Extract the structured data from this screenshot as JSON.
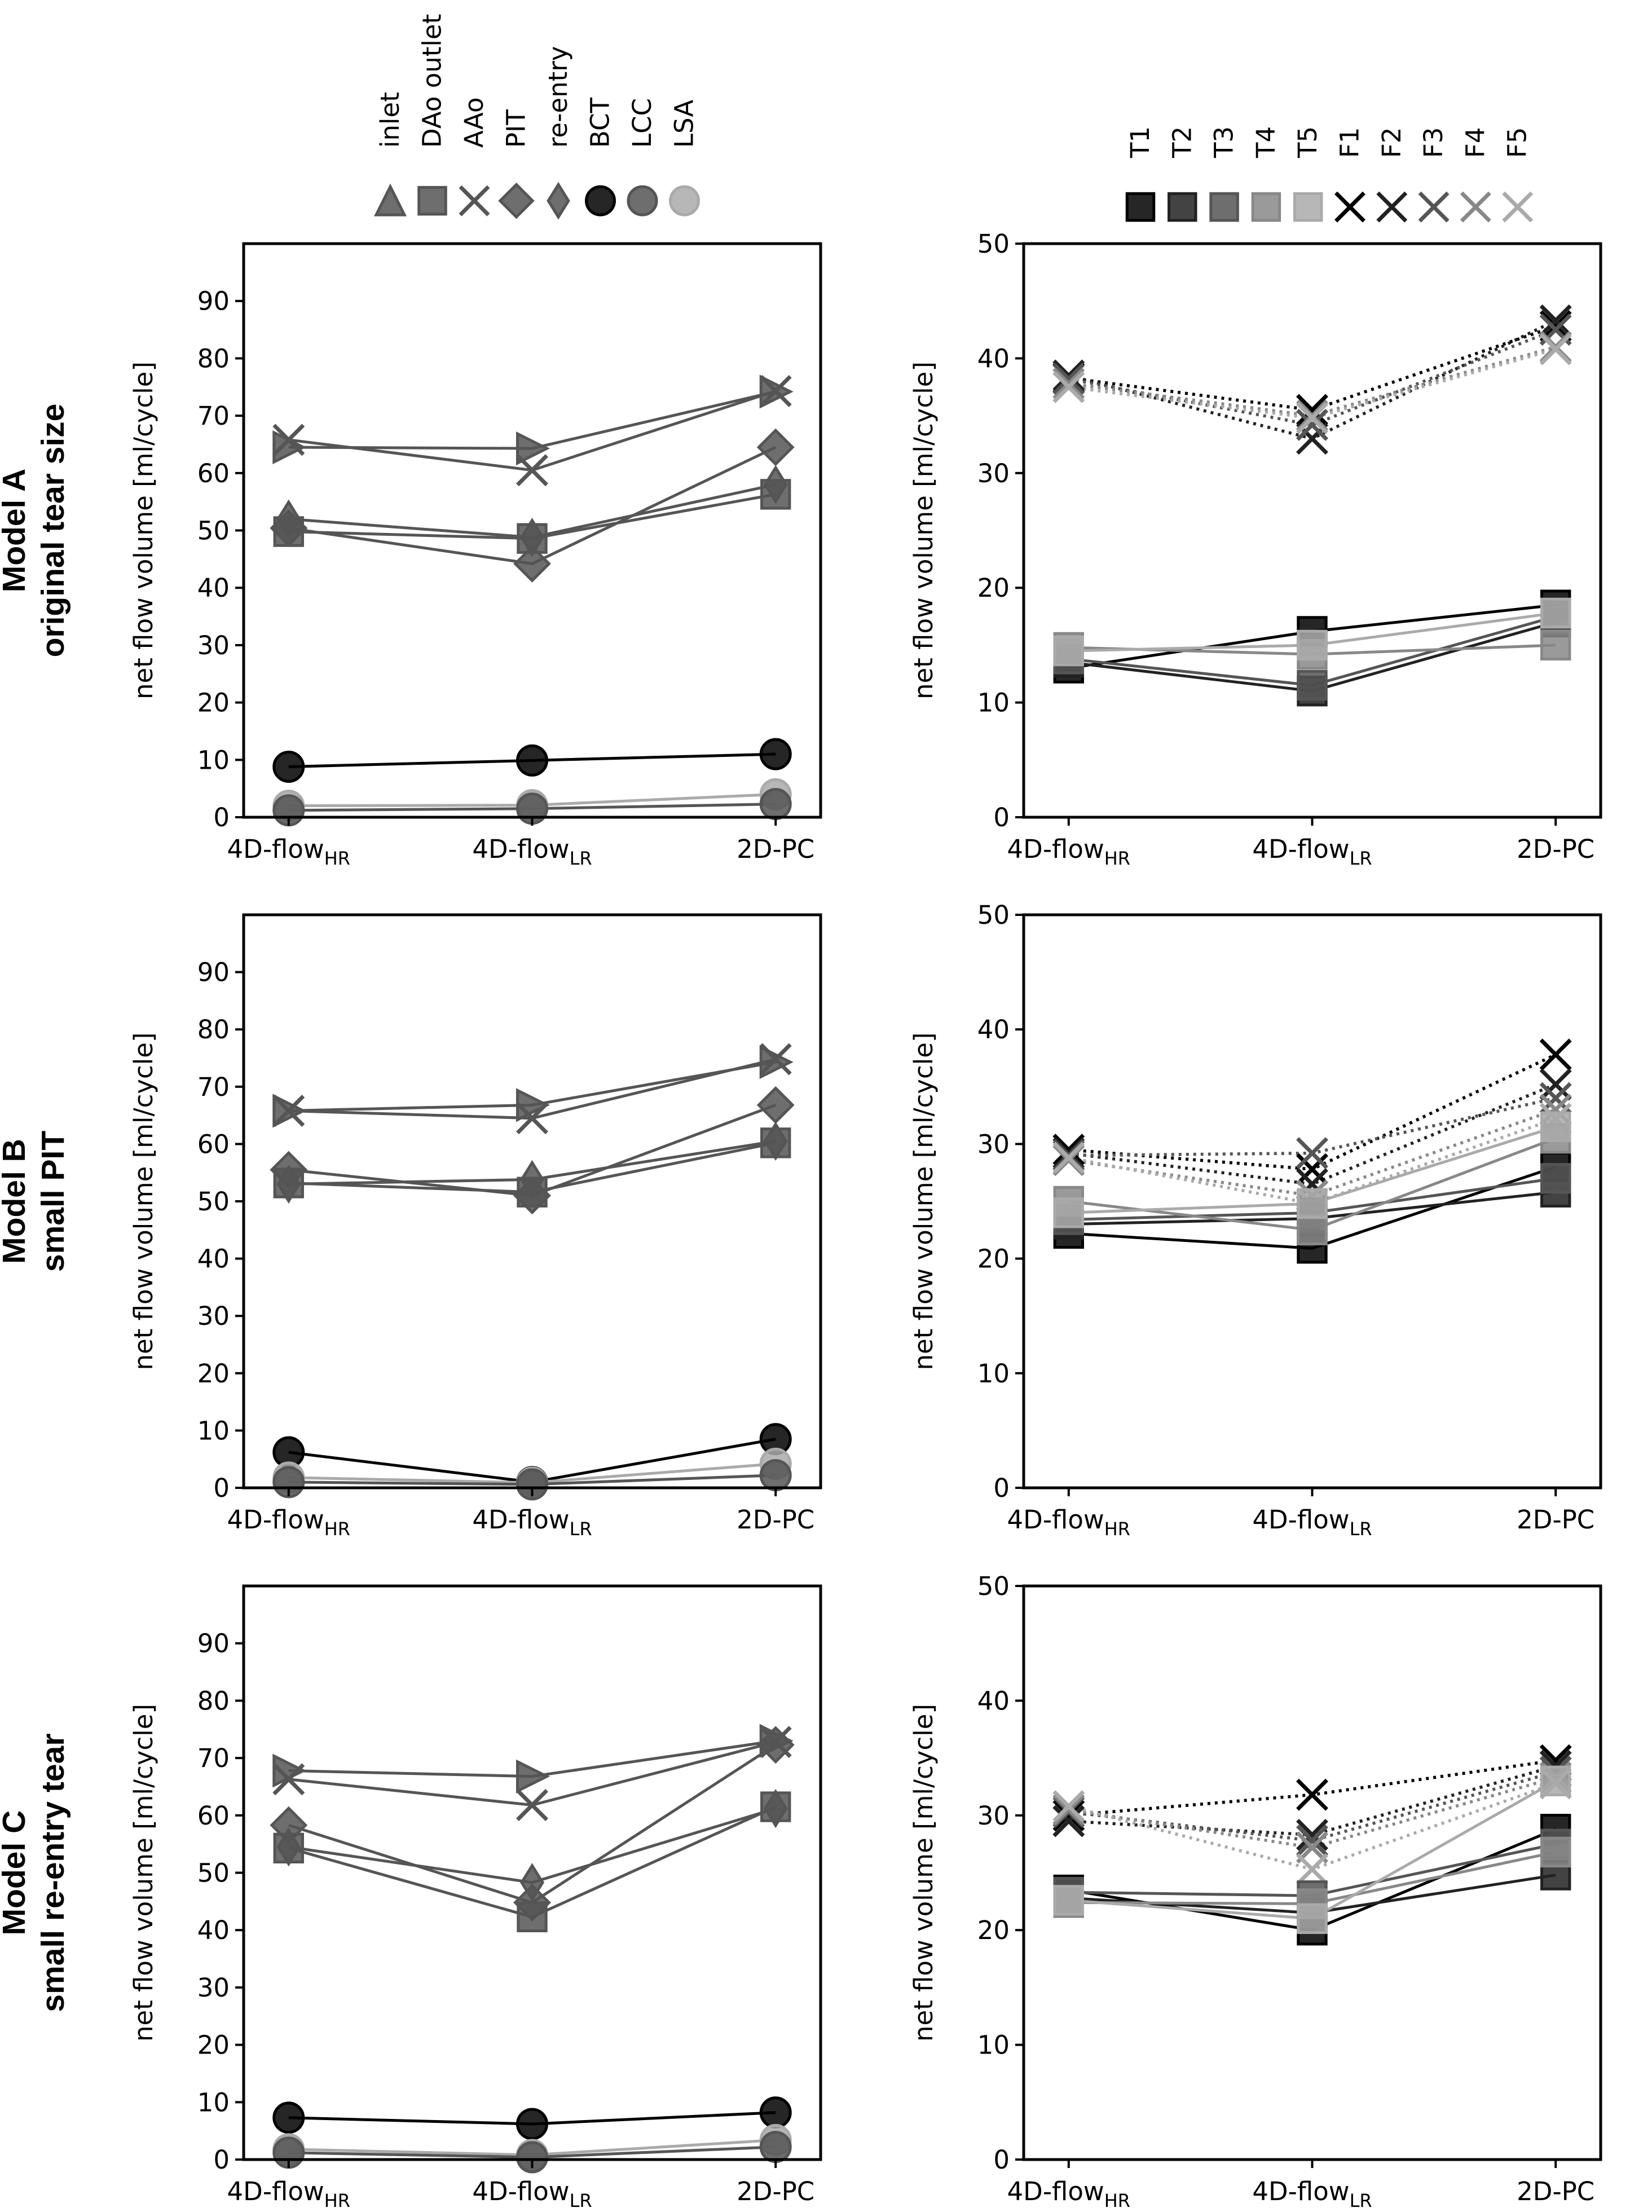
{
  "figure": {
    "row_labels": [
      [
        "Model A",
        "original tear size"
      ],
      [
        "Model B",
        "small PIT"
      ],
      [
        "Model C",
        "small re-entry tear"
      ]
    ],
    "legend_left": [
      {
        "name": "inlet",
        "marker": "triangle-right",
        "color": "#555555"
      },
      {
        "name": "DAo outlet",
        "marker": "square",
        "color": "#555555"
      },
      {
        "name": "AAo",
        "marker": "x",
        "color": "#555555"
      },
      {
        "name": "PIT",
        "marker": "diamond",
        "color": "#555555"
      },
      {
        "name": "re-entry",
        "marker": "thin-diamond",
        "color": "#555555"
      },
      {
        "name": "BCT",
        "marker": "circle",
        "color": "#000000"
      },
      {
        "name": "LCC",
        "marker": "circle",
        "color": "#555555"
      },
      {
        "name": "LSA",
        "marker": "circle",
        "color": "#aaaaaa"
      }
    ],
    "legend_right": [
      {
        "name": "T1",
        "marker": "square",
        "color": "#000000"
      },
      {
        "name": "T2",
        "marker": "square",
        "color": "#222222"
      },
      {
        "name": "T3",
        "marker": "square",
        "color": "#555555"
      },
      {
        "name": "T4",
        "marker": "square",
        "color": "#888888"
      },
      {
        "name": "T5",
        "marker": "square",
        "color": "#aaaaaa"
      },
      {
        "name": "F1",
        "marker": "x",
        "color": "#000000"
      },
      {
        "name": "F2",
        "marker": "x",
        "color": "#222222"
      },
      {
        "name": "F3",
        "marker": "x",
        "color": "#555555"
      },
      {
        "name": "F4",
        "marker": "x",
        "color": "#888888"
      },
      {
        "name": "F5",
        "marker": "x",
        "color": "#aaaaaa"
      }
    ]
  },
  "chart_data": [
    {
      "id": "A-left",
      "type": "line",
      "row": 0,
      "col": 0,
      "ylabel": "net flow volume [ml/cycle]",
      "categories": [
        [
          "4D-flow",
          "HR"
        ],
        [
          "4D-flow",
          "LR"
        ],
        [
          "2D-PC",
          ""
        ]
      ],
      "ylim": [
        0,
        100
      ],
      "yticks": [
        0,
        10,
        20,
        30,
        40,
        50,
        60,
        70,
        80,
        90
      ],
      "series": [
        {
          "name": "inlet",
          "values": [
            64.5,
            64.3,
            74.2
          ],
          "marker": "triangle-right",
          "color": "#555555",
          "line": "solid"
        },
        {
          "name": "AAo",
          "values": [
            65.8,
            60.5,
            74.3
          ],
          "marker": "x",
          "color": "#555555",
          "line": "solid"
        },
        {
          "name": "PIT",
          "values": [
            50.4,
            44.2,
            64.5
          ],
          "marker": "diamond",
          "color": "#555555",
          "line": "solid"
        },
        {
          "name": "re-entry",
          "values": [
            52.0,
            48.8,
            58.0
          ],
          "marker": "thin-diamond",
          "color": "#555555",
          "line": "solid"
        },
        {
          "name": "DAo outlet",
          "values": [
            49.8,
            48.6,
            56.3
          ],
          "marker": "square",
          "color": "#555555",
          "line": "solid"
        },
        {
          "name": "BCT",
          "values": [
            8.8,
            9.9,
            11.0
          ],
          "marker": "circle",
          "color": "#000000",
          "line": "solid"
        },
        {
          "name": "LSA",
          "values": [
            2.0,
            2.1,
            4.0
          ],
          "marker": "circle",
          "color": "#aaaaaa",
          "line": "solid"
        },
        {
          "name": "LCC",
          "values": [
            1.2,
            1.5,
            2.3
          ],
          "marker": "circle",
          "color": "#555555",
          "line": "solid"
        }
      ]
    },
    {
      "id": "A-right",
      "type": "line",
      "row": 0,
      "col": 1,
      "ylabel": "net flow volume [ml/cycle]",
      "categories": [
        [
          "4D-flow",
          "HR"
        ],
        [
          "4D-flow",
          "LR"
        ],
        [
          "2D-PC",
          ""
        ]
      ],
      "ylim": [
        0,
        50
      ],
      "yticks": [
        0,
        10,
        20,
        30,
        40,
        50
      ],
      "series": [
        {
          "name": "F1",
          "values": [
            38.3,
            35.5,
            42.8
          ],
          "marker": "x",
          "color": "#000000",
          "line": "dotted"
        },
        {
          "name": "F2",
          "values": [
            38.5,
            33.0,
            43.3
          ],
          "marker": "x",
          "color": "#222222",
          "line": "dotted"
        },
        {
          "name": "F3",
          "values": [
            38.2,
            34.2,
            42.5
          ],
          "marker": "x",
          "color": "#555555",
          "line": "dotted"
        },
        {
          "name": "F4",
          "values": [
            37.8,
            35.0,
            41.0
          ],
          "marker": "x",
          "color": "#888888",
          "line": "dotted"
        },
        {
          "name": "F5",
          "values": [
            37.5,
            34.8,
            40.8
          ],
          "marker": "x",
          "color": "#aaaaaa",
          "line": "dotted"
        },
        {
          "name": "T1",
          "values": [
            13.0,
            16.2,
            18.5
          ],
          "marker": "square",
          "color": "#000000",
          "line": "solid"
        },
        {
          "name": "T2",
          "values": [
            13.5,
            11.0,
            17.0
          ],
          "marker": "square",
          "color": "#222222",
          "line": "solid"
        },
        {
          "name": "T3",
          "values": [
            13.8,
            11.5,
            17.5
          ],
          "marker": "square",
          "color": "#555555",
          "line": "solid"
        },
        {
          "name": "T4",
          "values": [
            14.8,
            14.2,
            15.0
          ],
          "marker": "square",
          "color": "#888888",
          "line": "solid"
        },
        {
          "name": "T5",
          "values": [
            14.5,
            15.0,
            17.8
          ],
          "marker": "square",
          "color": "#aaaaaa",
          "line": "solid"
        }
      ]
    },
    {
      "id": "B-left",
      "type": "line",
      "row": 1,
      "col": 0,
      "ylabel": "net flow volume [ml/cycle]",
      "categories": [
        [
          "4D-flow",
          "HR"
        ],
        [
          "4D-flow",
          "LR"
        ],
        [
          "2D-PC",
          ""
        ]
      ],
      "ylim": [
        0,
        100
      ],
      "yticks": [
        0,
        10,
        20,
        30,
        40,
        50,
        60,
        70,
        80,
        90
      ],
      "series": [
        {
          "name": "inlet",
          "values": [
            65.8,
            66.8,
            74.3
          ],
          "marker": "triangle-right",
          "color": "#555555",
          "line": "solid"
        },
        {
          "name": "AAo",
          "values": [
            65.8,
            64.5,
            74.8
          ],
          "marker": "x",
          "color": "#555555",
          "line": "solid"
        },
        {
          "name": "PIT",
          "values": [
            55.5,
            51.0,
            66.8
          ],
          "marker": "diamond",
          "color": "#555555",
          "line": "solid"
        },
        {
          "name": "re-entry",
          "values": [
            53.0,
            53.8,
            60.5
          ],
          "marker": "thin-diamond",
          "color": "#555555",
          "line": "solid"
        },
        {
          "name": "DAo outlet",
          "values": [
            53.2,
            51.6,
            60.2
          ],
          "marker": "square",
          "color": "#555555",
          "line": "solid"
        },
        {
          "name": "BCT",
          "values": [
            6.2,
            1.0,
            8.5
          ],
          "marker": "circle",
          "color": "#000000",
          "line": "solid"
        },
        {
          "name": "LSA",
          "values": [
            1.8,
            0.9,
            4.2
          ],
          "marker": "circle",
          "color": "#aaaaaa",
          "line": "solid"
        },
        {
          "name": "LCC",
          "values": [
            1.0,
            0.6,
            2.2
          ],
          "marker": "circle",
          "color": "#555555",
          "line": "solid"
        }
      ]
    },
    {
      "id": "B-right",
      "type": "line",
      "row": 1,
      "col": 1,
      "ylabel": "net flow volume [ml/cycle]",
      "categories": [
        [
          "4D-flow",
          "HR"
        ],
        [
          "4D-flow",
          "LR"
        ],
        [
          "2D-PC",
          ""
        ]
      ],
      "ylim": [
        0,
        50
      ],
      "yticks": [
        0,
        10,
        20,
        30,
        40,
        50
      ],
      "series": [
        {
          "name": "F1",
          "values": [
            29.5,
            27.8,
            37.8
          ],
          "marker": "x",
          "color": "#000000",
          "line": "dotted"
        },
        {
          "name": "F2",
          "values": [
            29.2,
            26.5,
            35.2
          ],
          "marker": "x",
          "color": "#222222",
          "line": "dotted"
        },
        {
          "name": "F3",
          "values": [
            29.0,
            29.2,
            34.0
          ],
          "marker": "x",
          "color": "#555555",
          "line": "dotted"
        },
        {
          "name": "F4",
          "values": [
            28.6,
            25.5,
            33.0
          ],
          "marker": "x",
          "color": "#888888",
          "line": "dotted"
        },
        {
          "name": "F5",
          "values": [
            28.8,
            24.8,
            32.2
          ],
          "marker": "x",
          "color": "#aaaaaa",
          "line": "dotted"
        },
        {
          "name": "T1",
          "values": [
            22.2,
            20.9,
            28.0
          ],
          "marker": "square",
          "color": "#000000",
          "line": "solid"
        },
        {
          "name": "T2",
          "values": [
            23.0,
            23.5,
            25.8
          ],
          "marker": "square",
          "color": "#222222",
          "line": "solid"
        },
        {
          "name": "T3",
          "values": [
            23.4,
            24.0,
            27.0
          ],
          "marker": "square",
          "color": "#555555",
          "line": "solid"
        },
        {
          "name": "T4",
          "values": [
            25.0,
            22.5,
            30.5
          ],
          "marker": "square",
          "color": "#888888",
          "line": "solid"
        },
        {
          "name": "T5",
          "values": [
            24.0,
            24.8,
            31.5
          ],
          "marker": "square",
          "color": "#aaaaaa",
          "line": "solid"
        }
      ]
    },
    {
      "id": "C-left",
      "type": "line",
      "row": 2,
      "col": 0,
      "ylabel": "net flow volume [ml/cycle]",
      "categories": [
        [
          "4D-flow",
          "HR"
        ],
        [
          "4D-flow",
          "LR"
        ],
        [
          "2D-PC",
          ""
        ]
      ],
      "ylim": [
        0,
        100
      ],
      "yticks": [
        0,
        10,
        20,
        30,
        40,
        50,
        60,
        70,
        80,
        90
      ],
      "series": [
        {
          "name": "inlet",
          "values": [
            67.8,
            66.8,
            73.0
          ],
          "marker": "triangle-right",
          "color": "#555555",
          "line": "solid"
        },
        {
          "name": "AAo",
          "values": [
            66.3,
            61.8,
            72.8
          ],
          "marker": "x",
          "color": "#555555",
          "line": "solid"
        },
        {
          "name": "PIT",
          "values": [
            58.3,
            44.8,
            72.3
          ],
          "marker": "diamond",
          "color": "#555555",
          "line": "solid"
        },
        {
          "name": "re-entry",
          "values": [
            54.5,
            48.3,
            61.2
          ],
          "marker": "thin-diamond",
          "color": "#555555",
          "line": "solid"
        },
        {
          "name": "DAo outlet",
          "values": [
            54.3,
            42.3,
            61.5
          ],
          "marker": "square",
          "color": "#555555",
          "line": "solid"
        },
        {
          "name": "BCT",
          "values": [
            7.3,
            6.2,
            8.2
          ],
          "marker": "circle",
          "color": "#000000",
          "line": "solid"
        },
        {
          "name": "LSA",
          "values": [
            1.8,
            0.8,
            3.4
          ],
          "marker": "circle",
          "color": "#aaaaaa",
          "line": "solid"
        },
        {
          "name": "LCC",
          "values": [
            1.2,
            0.4,
            2.2
          ],
          "marker": "circle",
          "color": "#555555",
          "line": "solid"
        }
      ]
    },
    {
      "id": "C-right",
      "type": "line",
      "row": 2,
      "col": 1,
      "ylabel": "net flow volume [ml/cycle]",
      "categories": [
        [
          "4D-flow",
          "HR"
        ],
        [
          "4D-flow",
          "LR"
        ],
        [
          "2D-PC",
          ""
        ]
      ],
      "ylim": [
        0,
        50
      ],
      "yticks": [
        0,
        10,
        20,
        30,
        40,
        50
      ],
      "series": [
        {
          "name": "F1",
          "values": [
            30.0,
            31.8,
            34.8
          ],
          "marker": "x",
          "color": "#000000",
          "line": "dotted"
        },
        {
          "name": "F2",
          "values": [
            29.5,
            28.3,
            34.3
          ],
          "marker": "x",
          "color": "#222222",
          "line": "dotted"
        },
        {
          "name": "F3",
          "values": [
            30.3,
            27.8,
            33.8
          ],
          "marker": "x",
          "color": "#555555",
          "line": "dotted"
        },
        {
          "name": "F4",
          "values": [
            30.5,
            27.2,
            33.3
          ],
          "marker": "x",
          "color": "#888888",
          "line": "dotted"
        },
        {
          "name": "F5",
          "values": [
            30.8,
            25.3,
            32.8
          ],
          "marker": "x",
          "color": "#aaaaaa",
          "line": "dotted"
        },
        {
          "name": "T1",
          "values": [
            23.5,
            20.0,
            28.8
          ],
          "marker": "square",
          "color": "#000000",
          "line": "solid"
        },
        {
          "name": "T2",
          "values": [
            22.8,
            21.5,
            24.8
          ],
          "marker": "square",
          "color": "#222222",
          "line": "solid"
        },
        {
          "name": "T3",
          "values": [
            23.3,
            23.0,
            27.5
          ],
          "marker": "square",
          "color": "#555555",
          "line": "solid"
        },
        {
          "name": "T4",
          "values": [
            22.4,
            22.3,
            26.8
          ],
          "marker": "square",
          "color": "#888888",
          "line": "solid"
        },
        {
          "name": "T5",
          "values": [
            22.6,
            21.0,
            33.0
          ],
          "marker": "square",
          "color": "#aaaaaa",
          "line": "solid"
        }
      ]
    }
  ]
}
